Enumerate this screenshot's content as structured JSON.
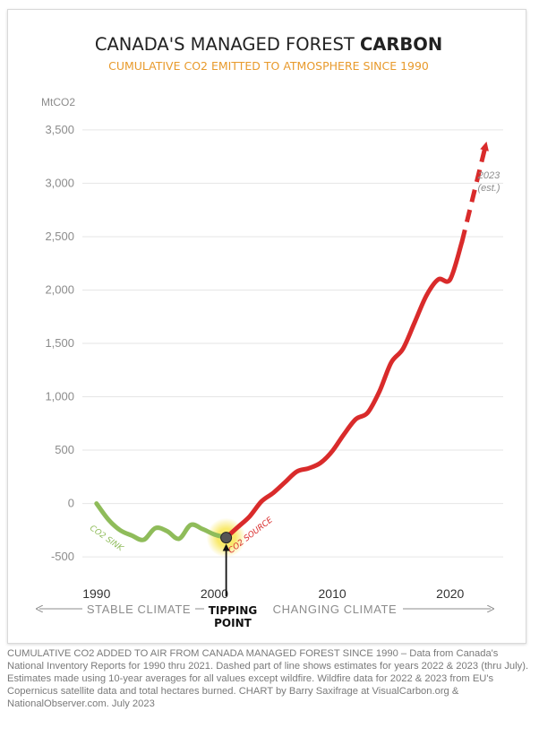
{
  "chart_data": {
    "type": "line",
    "title_regular": "CANADA'S MANAGED FOREST ",
    "title_bold": "CARBON",
    "subtitle": "CUMULATIVE CO2 EMITTED TO ATMOSPHERE SINCE 1990",
    "ylabel": "MtCO2",
    "ylim": [
      -600,
      3600
    ],
    "xlim": [
      1988.8,
      2024.5
    ],
    "y_ticks": [
      -500,
      0,
      500,
      1000,
      1500,
      2000,
      2500,
      3000,
      3500
    ],
    "y_tick_labels": [
      "-500",
      "0",
      "500",
      "1,000",
      "1,500",
      "2,000",
      "2,500",
      "3,000",
      "3,500"
    ],
    "x_ticks": [
      1990,
      2000,
      2010,
      2020
    ],
    "x_tick_labels": [
      "1990",
      "2000",
      "2010",
      "2020"
    ],
    "grid": true,
    "series": [
      {
        "name": "CO2 SINK",
        "color": "#8fbc5a",
        "x": [
          1990,
          1991,
          1992,
          1993,
          1994,
          1995,
          1996,
          1997,
          1998,
          1999,
          2000,
          2001
        ],
        "y": [
          0,
          -150,
          -250,
          -300,
          -340,
          -230,
          -260,
          -330,
          -200,
          -240,
          -290,
          -320
        ]
      },
      {
        "name": "CO2 SOURCE",
        "color": "#d92b2b",
        "x": [
          2001,
          2002,
          2003,
          2004,
          2005,
          2006,
          2007,
          2008,
          2009,
          2010,
          2011,
          2012,
          2013,
          2014,
          2015,
          2016,
          2017,
          2018,
          2019,
          2020,
          2021
        ],
        "y": [
          -320,
          -220,
          -120,
          20,
          100,
          200,
          300,
          330,
          380,
          490,
          650,
          790,
          850,
          1050,
          1320,
          1450,
          1700,
          1950,
          2100,
          2100,
          2450
        ]
      },
      {
        "name": "estimate",
        "color": "#d92b2b",
        "dashed": true,
        "x": [
          2021,
          2022,
          2023
        ],
        "y": [
          2450,
          2900,
          3350
        ]
      }
    ],
    "annotations": {
      "sink_label": "CO2 SINK",
      "source_label": "CO2 SOURCE",
      "tipping_point_line1": "TIPPING",
      "tipping_point_line2": "POINT",
      "tipping_point_year": 2001,
      "tipping_point_value": -320,
      "estimate_line1": "2023",
      "estimate_line2": "(est.)",
      "stable_climate": "STABLE CLIMATE",
      "changing_climate": "CHANGING CLIMATE"
    },
    "colors": {
      "title": "#222222",
      "subtitle": "#e89a2c",
      "axis_text": "#8c8c8c",
      "grid": "#e6e6e6",
      "sink": "#8fbc5a",
      "source": "#d92b2b",
      "estimate_label": "#8c8c8c",
      "tipping_glow": "#f7e23a"
    }
  },
  "caption": "CUMULATIVE CO2 ADDED TO AIR FROM CANADA MANAGED FOREST SINCE 1990 – Data from Canada's National Inventory Reports for 1990 thru 2021. Dashed part of line shows estimates for years 2022 & 2023 (thru July). Estimates made using 10-year averages for all values except wildfire. Wildfire data for 2022 & 2023 from EU's Copernicus satellite data and total hectares burned. CHART by Barry Saxifrage at VisualCarbon.org & NationalObserver.com. July 2023"
}
